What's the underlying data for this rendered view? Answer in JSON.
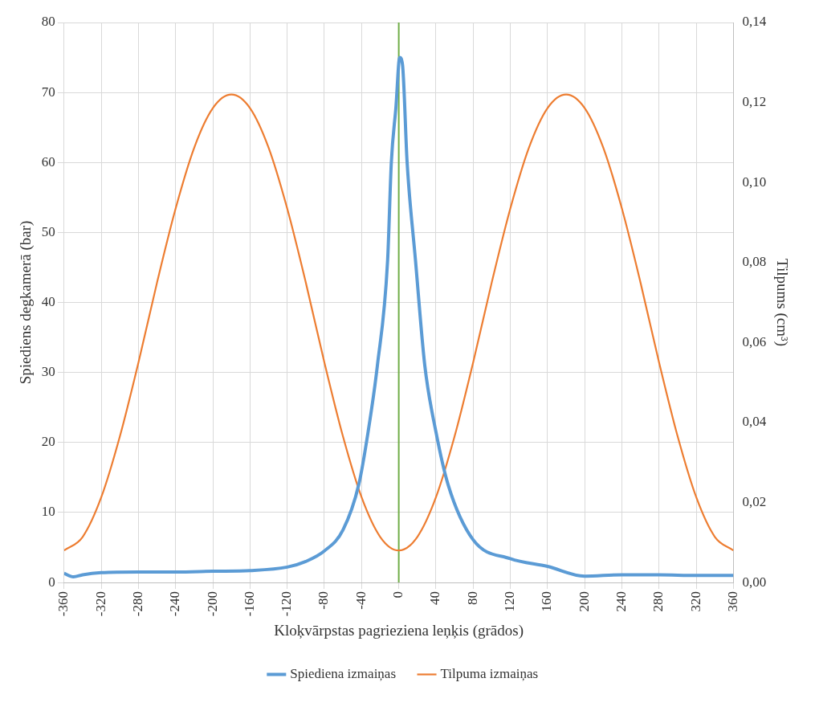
{
  "chart_data": {
    "type": "line",
    "xlabel": "Kloķvārpstas pagrieziena leņķis (grādos)",
    "ylabel": "Spiediens degkamerā (bar)",
    "y2label": "Tilpums (cm³)",
    "xlim": [
      -360,
      360
    ],
    "xticks": [
      -360,
      -320,
      -280,
      -240,
      -200,
      -160,
      -120,
      -80,
      -40,
      0,
      40,
      80,
      120,
      160,
      200,
      240,
      280,
      320,
      360
    ],
    "ylim": [
      0,
      80
    ],
    "yticks": [
      0,
      10,
      20,
      30,
      40,
      50,
      60,
      70,
      80
    ],
    "y2lim": [
      0,
      0.14
    ],
    "y2ticks": [
      {
        "value": 0,
        "label": "0,00"
      },
      {
        "value": 0.02,
        "label": "0,02"
      },
      {
        "value": 0.04,
        "label": "0,04"
      },
      {
        "value": 0.06,
        "label": "0,06"
      },
      {
        "value": 0.08,
        "label": "0,08"
      },
      {
        "value": 0.1,
        "label": "0,10"
      },
      {
        "value": 0.12,
        "label": "0,12"
      },
      {
        "value": 0.14,
        "label": "0,14"
      }
    ],
    "grid": true,
    "legend": "bottom",
    "marker": "none",
    "line_style": "solid",
    "ref_lines": [
      {
        "axis": "x",
        "value": 0,
        "label": null,
        "color": "#70ad47"
      }
    ],
    "series": [
      {
        "name": "Spiediena izmaiņas",
        "color": "#5b9bd5",
        "x": [
          -360,
          -350,
          -340,
          -320,
          -280,
          -240,
          -200,
          -160,
          -120,
          -100,
          -80,
          -60,
          -43,
          -33,
          -23,
          -12,
          -8,
          -3,
          1,
          4,
          9,
          18,
          28,
          40,
          53,
          80,
          120,
          160,
          200,
          240,
          280,
          320,
          360
        ],
        "values": [
          1.3,
          0.8,
          1.1,
          1.4,
          1.5,
          1.5,
          1.6,
          1.7,
          2.2,
          3,
          4.5,
          7.5,
          14,
          21.5,
          31,
          46,
          60,
          68,
          75,
          74,
          60,
          46,
          31,
          21.5,
          14,
          6.1,
          3.4,
          2.3,
          0.9,
          1.1,
          1.1,
          1,
          1
        ]
      },
      {
        "name": "Tilpuma izmaiņas",
        "color": "#ed7d31",
        "axis": "y2",
        "x": [
          -360,
          -340,
          -320,
          -300,
          -280,
          -260,
          -240,
          -220,
          -200,
          -180,
          -160,
          -140,
          -120,
          -100,
          -80,
          -60,
          -40,
          -20,
          0,
          20,
          40,
          60,
          80,
          100,
          120,
          140,
          160,
          180,
          200,
          220,
          240,
          260,
          280,
          300,
          320,
          340,
          360
        ],
        "values": [
          0.008,
          0.0114,
          0.0213,
          0.0365,
          0.055,
          0.075,
          0.0935,
          0.1087,
          0.1186,
          0.122,
          0.1186,
          0.1087,
          0.0935,
          0.075,
          0.055,
          0.0365,
          0.0213,
          0.0114,
          0.008,
          0.0114,
          0.0213,
          0.0365,
          0.055,
          0.075,
          0.0935,
          0.1087,
          0.1186,
          0.122,
          0.1186,
          0.1087,
          0.0935,
          0.075,
          0.055,
          0.0365,
          0.0213,
          0.0114,
          0.008
        ]
      }
    ]
  }
}
